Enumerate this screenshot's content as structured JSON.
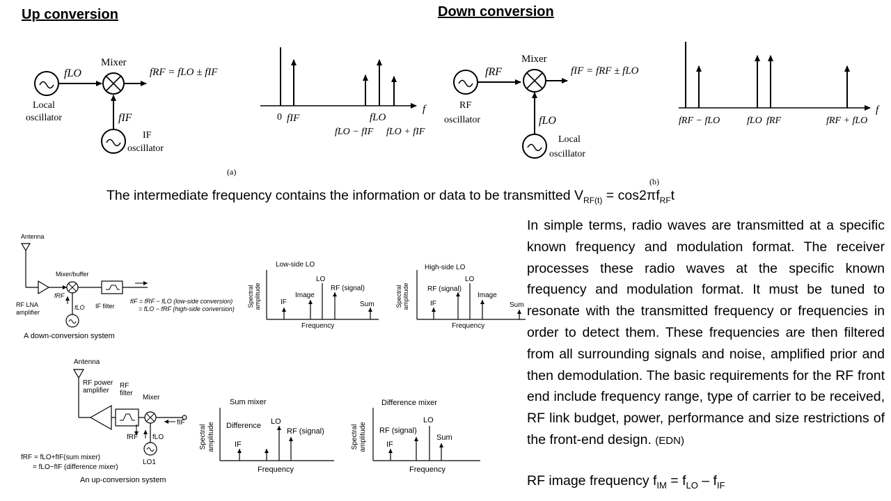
{
  "headings": {
    "up_conversion": "Up conversion",
    "down_conversion": "Down conversion"
  },
  "diagram_a": {
    "f_lo": "fLO",
    "mixer": "Mixer",
    "f_rf_eq": "fRF = fLO ± fIF",
    "local": "Local",
    "oscillator": "oscillator",
    "f_if": "fIF",
    "if_label": "IF",
    "if_oscillator": "oscillator",
    "caption": "(a)",
    "spectrum": {
      "zero": "0",
      "f_if": "fIF",
      "f_lo": "fLO",
      "lower": "fLO − fIF",
      "upper": "fLO + fIF",
      "f": "f"
    }
  },
  "diagram_b": {
    "f_rf": "fRF",
    "mixer": "Mixer",
    "f_if_eq": "fIF = fRF ± fLO",
    "rf": "RF",
    "rf_oscillator": "oscillator",
    "f_lo": "fLO",
    "local": "Local",
    "local_oscillator": "oscillator",
    "caption": "(b)",
    "spectrum": {
      "diff": "fRF − fLO",
      "f_lo": "fLO",
      "f_rf": "fRF",
      "sum": "fRF + fLO",
      "f": "f"
    }
  },
  "intermediate_text": {
    "text": "The intermediate frequency contains the information or data to be transmitted V",
    "sub1": "RF(t)",
    "mid": " = cos2πf",
    "sub2": "RF",
    "end": "t"
  },
  "down_system": {
    "antenna": "Antenna",
    "mixer_buffer": "Mixer/buffer",
    "rf_lna": "RF LNA",
    "amplifier": "amplifier",
    "f_rf": "fRF",
    "f_lo": "fLO",
    "if_filter": "IF filter",
    "eq1": "fIF = fRF − fLO (low-side conversion)",
    "eq2": "= fLO − fRF (high-side conversion)",
    "caption": "A down-conversion system",
    "low_side": {
      "title": "Low-side LO",
      "ylabel1": "Spectral",
      "ylabel2": "amplitude",
      "if": "IF",
      "image": "Image",
      "lo": "LO",
      "rf": "RF (signal)",
      "sum": "Sum",
      "xlabel": "Frequency"
    },
    "high_side": {
      "title": "High-side LO",
      "ylabel1": "Spectral",
      "ylabel2": "amplitude",
      "if": "IF",
      "rf": "RF (signal)",
      "lo": "LO",
      "image": "Image",
      "sum": "Sum",
      "xlabel": "Frequency"
    }
  },
  "up_system": {
    "antenna": "Antenna",
    "rf_power": "RF power",
    "amplifier": "amplifier",
    "rf": "RF",
    "filter": "filter",
    "mixer": "Mixer",
    "f_if": "fIF",
    "f_rf": "fRF",
    "f_lo": "fLO",
    "lo1": "LO1",
    "eq1": "fRF = fLO+fIF(sum mixer)",
    "eq2": "= fLO−fIF (difference mixer)",
    "caption": "An up-conversion system",
    "sum_mixer": {
      "title": "Sum mixer",
      "ylabel1": "Spectral",
      "ylabel2": "amplitude",
      "difference": "Difference",
      "lo": "LO",
      "rf": "RF (signal)",
      "if": "IF",
      "xlabel": "Frequency"
    },
    "diff_mixer": {
      "title": "Difference mixer",
      "ylabel1": "Spectral",
      "ylabel2": "amplitude",
      "rf": "RF (signal)",
      "lo": "LO",
      "sum": "Sum",
      "if": "IF",
      "xlabel": "Frequency"
    }
  },
  "paragraph": {
    "text": "In simple terms, radio waves are transmitted at a specific known frequency and modulation format. The receiver processes these radio waves at the specific known frequency and modulation format. It must be tuned to resonate with the transmitted frequency or frequencies in order to detect them. These frequencies are then filtered from all surrounding signals and noise, amplified prior and then demodulation. The basic requirements for the RF front end include frequency range, type of carrier to be received, RF link budget, power, performance and size restrictions of the front-end design.",
    "source": "(EDN)"
  },
  "image_frequency": {
    "text": "RF image frequency  f",
    "sub1": "IM",
    "mid1": " = f",
    "sub2": "LO",
    "mid2": " – f",
    "sub3": "IF"
  }
}
